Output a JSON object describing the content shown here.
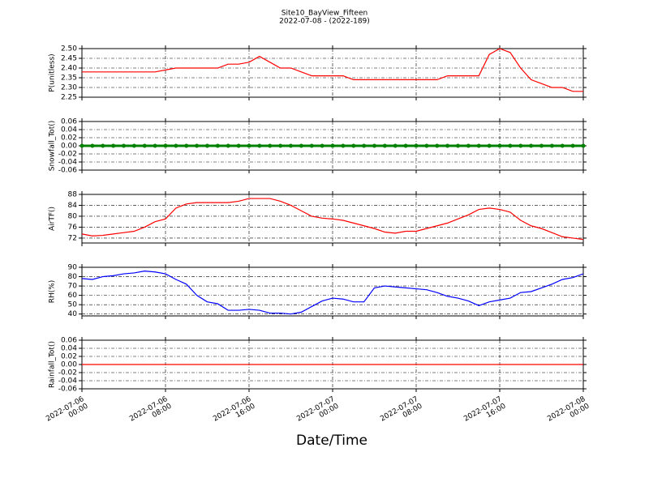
{
  "title": "Site10_BayView_Fifteen",
  "subtitle": "2022-07-08 - (2022-189)",
  "xlabel": "Date/Time",
  "chart_data": [
    {
      "type": "line",
      "ylabel": "P(unitless)",
      "color": "#ff0000",
      "marker": false,
      "x": [
        "2022-07-06 00:00",
        "2022-07-06 01:00",
        "2022-07-06 02:00",
        "2022-07-06 03:00",
        "2022-07-06 04:00",
        "2022-07-06 05:00",
        "2022-07-06 06:00",
        "2022-07-06 07:00",
        "2022-07-06 08:00",
        "2022-07-06 09:00",
        "2022-07-06 10:00",
        "2022-07-06 11:00",
        "2022-07-06 12:00",
        "2022-07-06 13:00",
        "2022-07-06 14:00",
        "2022-07-06 15:00",
        "2022-07-06 16:00",
        "2022-07-06 17:00",
        "2022-07-06 18:00",
        "2022-07-06 19:00",
        "2022-07-06 20:00",
        "2022-07-06 21:00",
        "2022-07-06 22:00",
        "2022-07-06 23:00",
        "2022-07-07 00:00",
        "2022-07-07 01:00",
        "2022-07-07 02:00",
        "2022-07-07 03:00",
        "2022-07-07 04:00",
        "2022-07-07 05:00",
        "2022-07-07 06:00",
        "2022-07-07 07:00",
        "2022-07-07 08:00",
        "2022-07-07 09:00",
        "2022-07-07 10:00",
        "2022-07-07 11:00",
        "2022-07-07 12:00",
        "2022-07-07 13:00",
        "2022-07-07 14:00",
        "2022-07-07 15:00",
        "2022-07-07 16:00",
        "2022-07-07 17:00",
        "2022-07-07 18:00",
        "2022-07-07 19:00",
        "2022-07-07 20:00",
        "2022-07-07 21:00",
        "2022-07-07 22:00",
        "2022-07-07 23:00",
        "2022-07-08 00:00"
      ],
      "values": [
        2.38,
        2.38,
        2.38,
        2.38,
        2.38,
        2.38,
        2.38,
        2.38,
        2.39,
        2.4,
        2.4,
        2.4,
        2.4,
        2.4,
        2.42,
        2.42,
        2.43,
        2.46,
        2.43,
        2.4,
        2.4,
        2.38,
        2.36,
        2.36,
        2.36,
        2.36,
        2.34,
        2.34,
        2.34,
        2.34,
        2.34,
        2.34,
        2.34,
        2.34,
        2.34,
        2.36,
        2.36,
        2.36,
        2.36,
        2.47,
        2.5,
        2.48,
        2.4,
        2.34,
        2.32,
        2.3,
        2.3,
        2.28,
        2.28
      ],
      "xlim": [
        "2022-07-06 00:00",
        "2022-07-08 00:00"
      ],
      "xticks": [
        "2022-07-06 00:00",
        "2022-07-06 08:00",
        "2022-07-06 16:00",
        "2022-07-07 00:00",
        "2022-07-07 08:00",
        "2022-07-07 16:00",
        "2022-07-08 00:00"
      ],
      "ylim": [
        2.25,
        2.5
      ],
      "yticks": [
        2.25,
        {
          "value": 2.3,
          "label": "2.30"
        },
        2.35,
        {
          "value": 2.4,
          "label": "2.40"
        },
        2.45,
        {
          "value": 2.5,
          "label": "2.50"
        }
      ],
      "grid": true,
      "show_xtick_labels": false
    },
    {
      "type": "line",
      "ylabel": "Snowfall_Tot()",
      "color": "#008000",
      "marker": true,
      "x": [
        "2022-07-06 00:00",
        "2022-07-06 01:00",
        "2022-07-06 02:00",
        "2022-07-06 03:00",
        "2022-07-06 04:00",
        "2022-07-06 05:00",
        "2022-07-06 06:00",
        "2022-07-06 07:00",
        "2022-07-06 08:00",
        "2022-07-06 09:00",
        "2022-07-06 10:00",
        "2022-07-06 11:00",
        "2022-07-06 12:00",
        "2022-07-06 13:00",
        "2022-07-06 14:00",
        "2022-07-06 15:00",
        "2022-07-06 16:00",
        "2022-07-06 17:00",
        "2022-07-06 18:00",
        "2022-07-06 19:00",
        "2022-07-06 20:00",
        "2022-07-06 21:00",
        "2022-07-06 22:00",
        "2022-07-06 23:00",
        "2022-07-07 00:00",
        "2022-07-07 01:00",
        "2022-07-07 02:00",
        "2022-07-07 03:00",
        "2022-07-07 04:00",
        "2022-07-07 05:00",
        "2022-07-07 06:00",
        "2022-07-07 07:00",
        "2022-07-07 08:00",
        "2022-07-07 09:00",
        "2022-07-07 10:00",
        "2022-07-07 11:00",
        "2022-07-07 12:00",
        "2022-07-07 13:00",
        "2022-07-07 14:00",
        "2022-07-07 15:00",
        "2022-07-07 16:00",
        "2022-07-07 17:00",
        "2022-07-07 18:00",
        "2022-07-07 19:00",
        "2022-07-07 20:00",
        "2022-07-07 21:00",
        "2022-07-07 22:00",
        "2022-07-07 23:00",
        "2022-07-08 00:00"
      ],
      "values": [
        0,
        0,
        0,
        0,
        0,
        0,
        0,
        0,
        0,
        0,
        0,
        0,
        0,
        0,
        0,
        0,
        0,
        0,
        0,
        0,
        0,
        0,
        0,
        0,
        0,
        0,
        0,
        0,
        0,
        0,
        0,
        0,
        0,
        0,
        0,
        0,
        0,
        0,
        0,
        0,
        0,
        0,
        0,
        0,
        0,
        0,
        0,
        0,
        0
      ],
      "xlim": [
        "2022-07-06 00:00",
        "2022-07-08 00:00"
      ],
      "xticks": [
        "2022-07-06 00:00",
        "2022-07-06 08:00",
        "2022-07-06 16:00",
        "2022-07-07 00:00",
        "2022-07-07 08:00",
        "2022-07-07 16:00",
        "2022-07-08 00:00"
      ],
      "ylim": [
        -0.06,
        0.06
      ],
      "yticks": [
        -0.06,
        -0.04,
        -0.02,
        {
          "value": 0,
          "label": "0.00"
        },
        0.02,
        0.04,
        0.06
      ],
      "grid": true,
      "show_xtick_labels": false
    },
    {
      "type": "line",
      "ylabel": "AirTF()",
      "color": "#ff0000",
      "marker": false,
      "x": [
        "2022-07-06 00:00",
        "2022-07-06 01:00",
        "2022-07-06 02:00",
        "2022-07-06 03:00",
        "2022-07-06 04:00",
        "2022-07-06 05:00",
        "2022-07-06 06:00",
        "2022-07-06 07:00",
        "2022-07-06 08:00",
        "2022-07-06 09:00",
        "2022-07-06 10:00",
        "2022-07-06 11:00",
        "2022-07-06 12:00",
        "2022-07-06 13:00",
        "2022-07-06 14:00",
        "2022-07-06 15:00",
        "2022-07-06 16:00",
        "2022-07-06 17:00",
        "2022-07-06 18:00",
        "2022-07-06 19:00",
        "2022-07-06 20:00",
        "2022-07-06 21:00",
        "2022-07-06 22:00",
        "2022-07-06 23:00",
        "2022-07-07 00:00",
        "2022-07-07 01:00",
        "2022-07-07 02:00",
        "2022-07-07 03:00",
        "2022-07-07 04:00",
        "2022-07-07 05:00",
        "2022-07-07 06:00",
        "2022-07-07 07:00",
        "2022-07-07 08:00",
        "2022-07-07 09:00",
        "2022-07-07 10:00",
        "2022-07-07 11:00",
        "2022-07-07 12:00",
        "2022-07-07 13:00",
        "2022-07-07 14:00",
        "2022-07-07 15:00",
        "2022-07-07 16:00",
        "2022-07-07 17:00",
        "2022-07-07 18:00",
        "2022-07-07 19:00",
        "2022-07-07 20:00",
        "2022-07-07 21:00",
        "2022-07-07 22:00",
        "2022-07-07 23:00",
        "2022-07-08 00:00"
      ],
      "values": [
        73.5,
        72.8,
        73,
        73.5,
        74,
        74.5,
        76,
        78,
        79,
        83,
        84.5,
        85,
        85,
        85,
        85,
        85.5,
        86.5,
        86.5,
        86.5,
        85.5,
        84,
        82,
        80,
        79.3,
        79,
        78.5,
        77.5,
        76.5,
        75.5,
        74.2,
        73.8,
        74.5,
        74.5,
        75.5,
        76.5,
        77.5,
        79,
        80.5,
        82.5,
        83,
        82.5,
        81.5,
        78.5,
        76.5,
        75.5,
        74,
        72.5,
        72,
        71.5
      ],
      "xlim": [
        "2022-07-06 00:00",
        "2022-07-08 00:00"
      ],
      "xticks": [
        "2022-07-06 00:00",
        "2022-07-06 08:00",
        "2022-07-06 16:00",
        "2022-07-07 00:00",
        "2022-07-07 08:00",
        "2022-07-07 16:00",
        "2022-07-08 00:00"
      ],
      "ylim": [
        70.2,
        88
      ],
      "yticks": [
        72,
        76,
        80,
        84,
        88
      ],
      "grid": true,
      "show_xtick_labels": false
    },
    {
      "type": "line",
      "ylabel": "RH(%)",
      "color": "#0000ff",
      "marker": false,
      "x": [
        "2022-07-06 00:00",
        "2022-07-06 01:00",
        "2022-07-06 02:00",
        "2022-07-06 03:00",
        "2022-07-06 04:00",
        "2022-07-06 05:00",
        "2022-07-06 06:00",
        "2022-07-06 07:00",
        "2022-07-06 08:00",
        "2022-07-06 09:00",
        "2022-07-06 10:00",
        "2022-07-06 11:00",
        "2022-07-06 12:00",
        "2022-07-06 13:00",
        "2022-07-06 14:00",
        "2022-07-06 15:00",
        "2022-07-06 16:00",
        "2022-07-06 17:00",
        "2022-07-06 18:00",
        "2022-07-06 19:00",
        "2022-07-06 20:00",
        "2022-07-06 21:00",
        "2022-07-06 22:00",
        "2022-07-06 23:00",
        "2022-07-07 00:00",
        "2022-07-07 01:00",
        "2022-07-07 02:00",
        "2022-07-07 03:00",
        "2022-07-07 04:00",
        "2022-07-07 05:00",
        "2022-07-07 06:00",
        "2022-07-07 07:00",
        "2022-07-07 08:00",
        "2022-07-07 09:00",
        "2022-07-07 10:00",
        "2022-07-07 11:00",
        "2022-07-07 12:00",
        "2022-07-07 13:00",
        "2022-07-07 14:00",
        "2022-07-07 15:00",
        "2022-07-07 16:00",
        "2022-07-07 17:00",
        "2022-07-07 18:00",
        "2022-07-07 19:00",
        "2022-07-07 20:00",
        "2022-07-07 21:00",
        "2022-07-07 22:00",
        "2022-07-07 23:00",
        "2022-07-08 00:00"
      ],
      "values": [
        78,
        77,
        80,
        81,
        83,
        84,
        86,
        85,
        83,
        77,
        72,
        60,
        53,
        51,
        44,
        44,
        45,
        44,
        41,
        41,
        40,
        42,
        48,
        54,
        57,
        56,
        53,
        53,
        68,
        70,
        69,
        68,
        67,
        66,
        63,
        59,
        57,
        54,
        49,
        53,
        55,
        57,
        63,
        64,
        68,
        72,
        77,
        79,
        83
      ],
      "xlim": [
        "2022-07-06 00:00",
        "2022-07-08 00:00"
      ],
      "xticks": [
        "2022-07-06 00:00",
        "2022-07-06 08:00",
        "2022-07-06 16:00",
        "2022-07-07 00:00",
        "2022-07-07 08:00",
        "2022-07-07 16:00",
        "2022-07-08 00:00"
      ],
      "ylim": [
        38,
        90
      ],
      "yticks": [
        40,
        50,
        60,
        70,
        80,
        90
      ],
      "grid": true,
      "show_xtick_labels": false
    },
    {
      "type": "line",
      "ylabel": "Rainfall_Tot()",
      "color": "#ff0000",
      "marker": false,
      "x": [
        "2022-07-06 00:00",
        "2022-07-06 01:00",
        "2022-07-06 02:00",
        "2022-07-06 03:00",
        "2022-07-06 04:00",
        "2022-07-06 05:00",
        "2022-07-06 06:00",
        "2022-07-06 07:00",
        "2022-07-06 08:00",
        "2022-07-06 09:00",
        "2022-07-06 10:00",
        "2022-07-06 11:00",
        "2022-07-06 12:00",
        "2022-07-06 13:00",
        "2022-07-06 14:00",
        "2022-07-06 15:00",
        "2022-07-06 16:00",
        "2022-07-06 17:00",
        "2022-07-06 18:00",
        "2022-07-06 19:00",
        "2022-07-06 20:00",
        "2022-07-06 21:00",
        "2022-07-06 22:00",
        "2022-07-06 23:00",
        "2022-07-07 00:00",
        "2022-07-07 01:00",
        "2022-07-07 02:00",
        "2022-07-07 03:00",
        "2022-07-07 04:00",
        "2022-07-07 05:00",
        "2022-07-07 06:00",
        "2022-07-07 07:00",
        "2022-07-07 08:00",
        "2022-07-07 09:00",
        "2022-07-07 10:00",
        "2022-07-07 11:00",
        "2022-07-07 12:00",
        "2022-07-07 13:00",
        "2022-07-07 14:00",
        "2022-07-07 15:00",
        "2022-07-07 16:00",
        "2022-07-07 17:00",
        "2022-07-07 18:00",
        "2022-07-07 19:00",
        "2022-07-07 20:00",
        "2022-07-07 21:00",
        "2022-07-07 22:00",
        "2022-07-07 23:00",
        "2022-07-08 00:00"
      ],
      "values": [
        0,
        0,
        0,
        0,
        0,
        0,
        0,
        0,
        0,
        0,
        0,
        0,
        0,
        0,
        0,
        0,
        0,
        0,
        0,
        0,
        0,
        0,
        0,
        0,
        0,
        0,
        0,
        0,
        0,
        0,
        0,
        0,
        0,
        0,
        0,
        0,
        0,
        0,
        0,
        0,
        0,
        0,
        0,
        0,
        0,
        0,
        0,
        0,
        0
      ],
      "xlim": [
        "2022-07-06 00:00",
        "2022-07-08 00:00"
      ],
      "xticks": [
        "2022-07-06 00:00",
        "2022-07-06 08:00",
        "2022-07-06 16:00",
        "2022-07-07 00:00",
        "2022-07-07 08:00",
        "2022-07-07 16:00",
        "2022-07-08 00:00"
      ],
      "ylim": [
        -0.06,
        0.06
      ],
      "yticks": [
        -0.06,
        -0.04,
        -0.02,
        {
          "value": 0,
          "label": "0.00"
        },
        0.02,
        0.04,
        0.06
      ],
      "grid": true,
      "show_xtick_labels": true
    }
  ]
}
